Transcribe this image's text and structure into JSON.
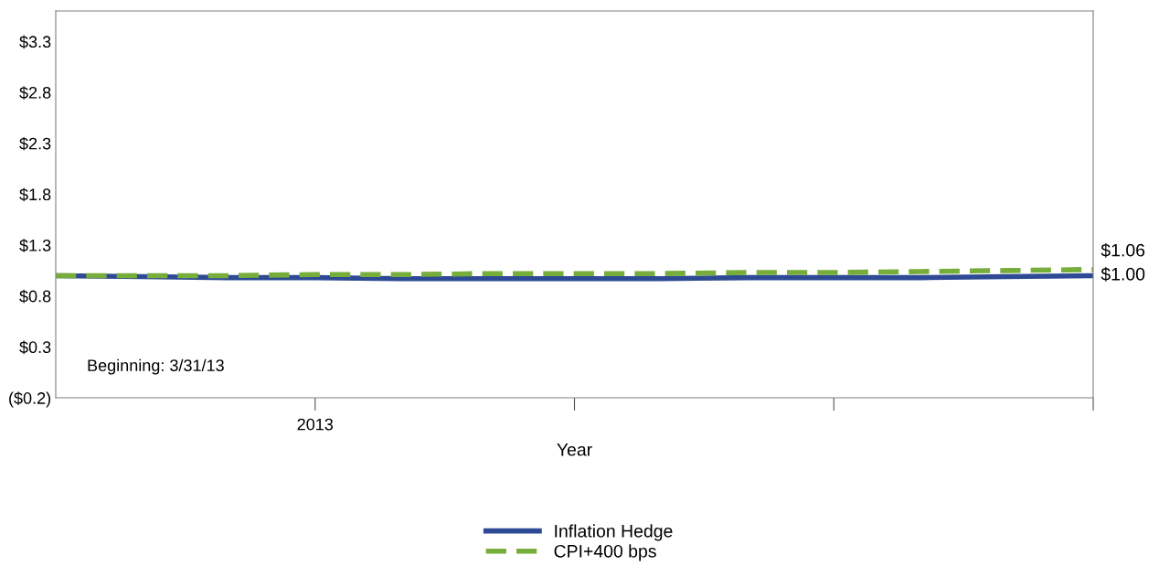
{
  "chart_data": {
    "type": "line",
    "xlabel": "Year",
    "categories": [
      null,
      null,
      null,
      null,
      null,
      null,
      null,
      null,
      null,
      null,
      null,
      null,
      null
    ],
    "ylim": [
      -0.2,
      3.6
    ],
    "yticks": [
      {
        "value": -0.2,
        "label": "($0.2)"
      },
      {
        "value": 0.3,
        "label": "$0.3"
      },
      {
        "value": 0.8,
        "label": "$0.8"
      },
      {
        "value": 1.3,
        "label": "$1.3"
      },
      {
        "value": 1.8,
        "label": "$1.8"
      },
      {
        "value": 2.3,
        "label": "$2.3"
      },
      {
        "value": 2.8,
        "label": "$2.8"
      },
      {
        "value": 3.3,
        "label": "$3.3"
      }
    ],
    "series": [
      {
        "name": "Inflation Hedge",
        "color": "#2e4a94",
        "line_style": "solid",
        "values": [
          1.0,
          0.99,
          0.98,
          0.98,
          0.97,
          0.97,
          0.97,
          0.97,
          0.98,
          0.98,
          0.98,
          0.99,
          1.0
        ],
        "value_labels": [
          null,
          null,
          null,
          null,
          null,
          null,
          null,
          null,
          null,
          null,
          null,
          null,
          "$1.00"
        ]
      },
      {
        "name": "CPI+400 bps",
        "color": "#77ad3a",
        "line_style": "dashed",
        "values": [
          1.0,
          1.0,
          1.0,
          1.01,
          1.01,
          1.02,
          1.02,
          1.02,
          1.03,
          1.03,
          1.04,
          1.05,
          1.06
        ],
        "value_labels": [
          null,
          null,
          null,
          null,
          null,
          null,
          null,
          null,
          null,
          null,
          null,
          null,
          "$1.06"
        ]
      }
    ],
    "annotations": [
      "Beginning: 3/31/13",
      "2013"
    ],
    "grid": false,
    "legend": "bottom",
    "marker": "none"
  }
}
